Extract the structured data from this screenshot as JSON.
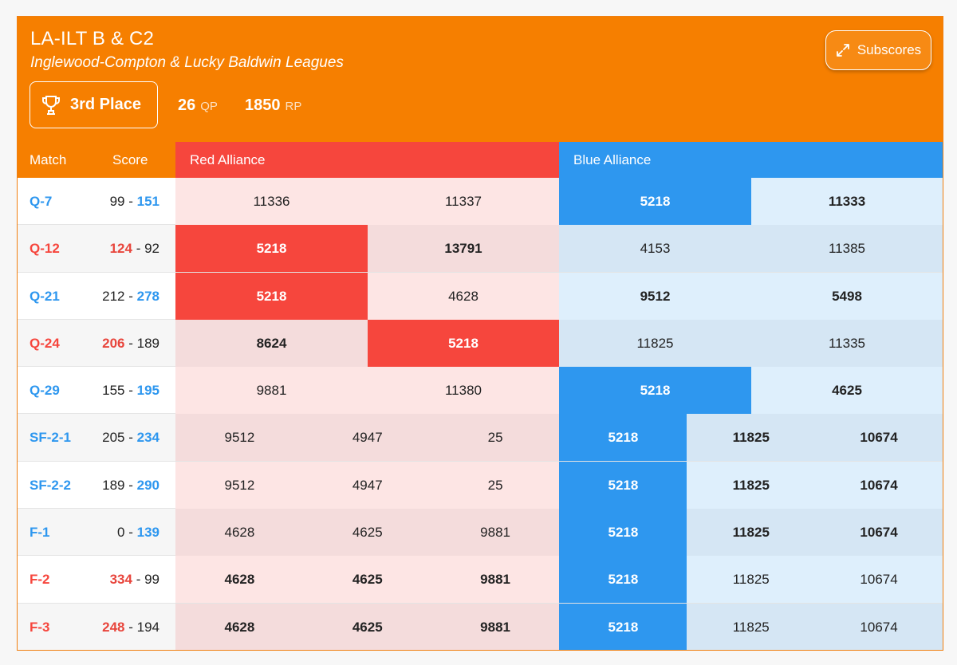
{
  "header": {
    "title": "LA-ILT B & C2",
    "subtitle": "Inglewood-Compton & Lucky Baldwin Leagues",
    "place": "3rd Place",
    "qp_value": "26",
    "qp_unit": "QP",
    "rp_value": "1850",
    "rp_unit": "RP",
    "subscores_label": "Subscores"
  },
  "columns": {
    "match": "Match",
    "score": "Score",
    "red": "Red Alliance",
    "blue": "Blue Alliance"
  },
  "colors": {
    "orange": "#f67f00",
    "red": "#f6463d",
    "blue": "#2e97ef"
  },
  "matches": [
    {
      "match": "Q-7",
      "winner": "blue",
      "red_score": "99",
      "blue_score": "151",
      "red": [
        {
          "team": "11336",
          "bold": false,
          "hl": false
        },
        {
          "team": "11337",
          "bold": false,
          "hl": false
        }
      ],
      "blue": [
        {
          "team": "5218",
          "bold": true,
          "hl": true
        },
        {
          "team": "11333",
          "bold": true,
          "hl": false
        }
      ]
    },
    {
      "match": "Q-12",
      "winner": "red",
      "red_score": "124",
      "blue_score": "92",
      "red": [
        {
          "team": "5218",
          "bold": true,
          "hl": true
        },
        {
          "team": "13791",
          "bold": true,
          "hl": false
        }
      ],
      "blue": [
        {
          "team": "4153",
          "bold": false,
          "hl": false
        },
        {
          "team": "11385",
          "bold": false,
          "hl": false
        }
      ]
    },
    {
      "match": "Q-21",
      "winner": "blue",
      "red_score": "212",
      "blue_score": "278",
      "red": [
        {
          "team": "5218",
          "bold": true,
          "hl": true
        },
        {
          "team": "4628",
          "bold": false,
          "hl": false
        }
      ],
      "blue": [
        {
          "team": "9512",
          "bold": true,
          "hl": false
        },
        {
          "team": "5498",
          "bold": true,
          "hl": false
        }
      ]
    },
    {
      "match": "Q-24",
      "winner": "red",
      "red_score": "206",
      "blue_score": "189",
      "red": [
        {
          "team": "8624",
          "bold": true,
          "hl": false
        },
        {
          "team": "5218",
          "bold": true,
          "hl": true
        }
      ],
      "blue": [
        {
          "team": "11825",
          "bold": false,
          "hl": false
        },
        {
          "team": "11335",
          "bold": false,
          "hl": false
        }
      ]
    },
    {
      "match": "Q-29",
      "winner": "blue",
      "red_score": "155",
      "blue_score": "195",
      "red": [
        {
          "team": "9881",
          "bold": false,
          "hl": false
        },
        {
          "team": "11380",
          "bold": false,
          "hl": false
        }
      ],
      "blue": [
        {
          "team": "5218",
          "bold": true,
          "hl": true
        },
        {
          "team": "4625",
          "bold": true,
          "hl": false
        }
      ]
    },
    {
      "match": "SF-2-1",
      "winner": "blue",
      "red_score": "205",
      "blue_score": "234",
      "red": [
        {
          "team": "9512",
          "bold": false,
          "hl": false
        },
        {
          "team": "4947",
          "bold": false,
          "hl": false
        },
        {
          "team": "25",
          "bold": false,
          "hl": false
        }
      ],
      "blue": [
        {
          "team": "5218",
          "bold": true,
          "hl": true
        },
        {
          "team": "11825",
          "bold": true,
          "hl": false
        },
        {
          "team": "10674",
          "bold": true,
          "hl": false
        }
      ]
    },
    {
      "match": "SF-2-2",
      "winner": "blue",
      "red_score": "189",
      "blue_score": "290",
      "red": [
        {
          "team": "9512",
          "bold": false,
          "hl": false
        },
        {
          "team": "4947",
          "bold": false,
          "hl": false
        },
        {
          "team": "25",
          "bold": false,
          "hl": false
        }
      ],
      "blue": [
        {
          "team": "5218",
          "bold": true,
          "hl": true
        },
        {
          "team": "11825",
          "bold": true,
          "hl": false
        },
        {
          "team": "10674",
          "bold": true,
          "hl": false
        }
      ]
    },
    {
      "match": "F-1",
      "winner": "blue",
      "red_score": "0",
      "blue_score": "139",
      "red": [
        {
          "team": "4628",
          "bold": false,
          "hl": false
        },
        {
          "team": "4625",
          "bold": false,
          "hl": false
        },
        {
          "team": "9881",
          "bold": false,
          "hl": false
        }
      ],
      "blue": [
        {
          "team": "5218",
          "bold": true,
          "hl": true
        },
        {
          "team": "11825",
          "bold": true,
          "hl": false
        },
        {
          "team": "10674",
          "bold": true,
          "hl": false
        }
      ]
    },
    {
      "match": "F-2",
      "winner": "red",
      "red_score": "334",
      "blue_score": "99",
      "red": [
        {
          "team": "4628",
          "bold": true,
          "hl": false
        },
        {
          "team": "4625",
          "bold": true,
          "hl": false
        },
        {
          "team": "9881",
          "bold": true,
          "hl": false
        }
      ],
      "blue": [
        {
          "team": "5218",
          "bold": false,
          "hl": true
        },
        {
          "team": "11825",
          "bold": false,
          "hl": false
        },
        {
          "team": "10674",
          "bold": false,
          "hl": false
        }
      ]
    },
    {
      "match": "F-3",
      "winner": "red",
      "red_score": "248",
      "blue_score": "194",
      "red": [
        {
          "team": "4628",
          "bold": true,
          "hl": false
        },
        {
          "team": "4625",
          "bold": true,
          "hl": false
        },
        {
          "team": "9881",
          "bold": true,
          "hl": false
        }
      ],
      "blue": [
        {
          "team": "5218",
          "bold": false,
          "hl": true
        },
        {
          "team": "11825",
          "bold": false,
          "hl": false
        },
        {
          "team": "10674",
          "bold": false,
          "hl": false
        }
      ]
    }
  ]
}
